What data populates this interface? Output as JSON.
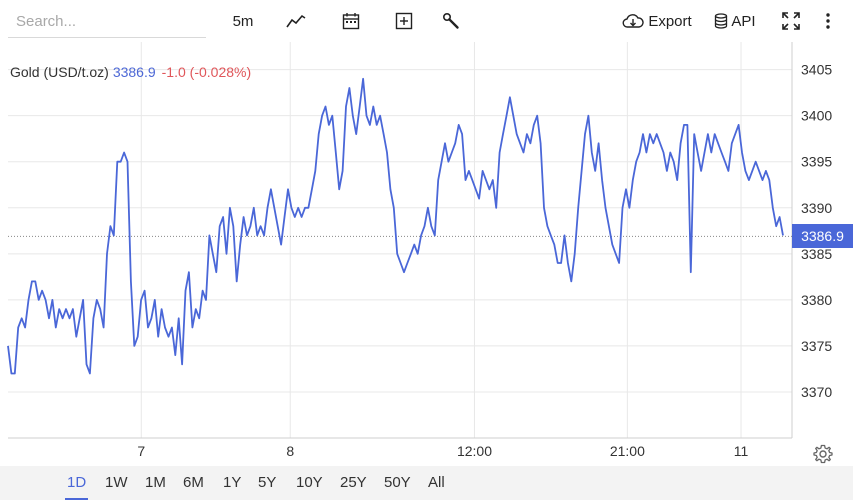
{
  "toolbar": {
    "search_placeholder": "Search...",
    "interval": "5m",
    "export_label": "Export",
    "api_label": "API",
    "icons": [
      "chart-type-icon",
      "calendar-icon",
      "add-indicator-icon",
      "wrench-icon",
      "cloud-download-icon",
      "database-icon",
      "fullscreen-icon",
      "more-vertical-icon"
    ]
  },
  "legend": {
    "name": "Gold (USD/t.oz)",
    "price": "3386.9",
    "change": "-1.0 (-0.028%)"
  },
  "last_price_label": "3386.9",
  "colors": {
    "line": "#4a67d8",
    "change": "#e0565a",
    "grid": "#e8e8e8"
  },
  "range_buttons": [
    "1D",
    "1W",
    "1M",
    "6M",
    "1Y",
    "5Y",
    "10Y",
    "25Y",
    "50Y",
    "All"
  ],
  "active_range": "1D",
  "chart_data": {
    "type": "line",
    "title": "Gold (USD/t.oz)",
    "ylim": [
      3365,
      3408
    ],
    "yticks": [
      3370,
      3375,
      3380,
      3385,
      3390,
      3395,
      3400,
      3405
    ],
    "xticks": [
      {
        "label": "7",
        "pos": 0.17
      },
      {
        "label": "8",
        "pos": 0.36
      },
      {
        "label": "12:00",
        "pos": 0.595
      },
      {
        "label": "21:00",
        "pos": 0.79
      },
      {
        "label": "11",
        "pos": 0.935
      }
    ],
    "last_value": 3386.9,
    "grid": true,
    "series": [
      {
        "values": [
          3375,
          3372,
          3372,
          3377,
          3378,
          3377,
          3380,
          3382,
          3382,
          3380,
          3381,
          3380,
          3378,
          3380,
          3377,
          3379,
          3378,
          3379,
          3378,
          3379,
          3376,
          3378,
          3380,
          3373,
          3372,
          3378,
          3380,
          3379,
          3377,
          3385,
          3388,
          3387,
          3395,
          3395,
          3396,
          3395,
          3382,
          3375,
          3376,
          3380,
          3381,
          3377,
          3378,
          3380,
          3376,
          3379,
          3377,
          3376,
          3377,
          3374,
          3378,
          3373,
          3381,
          3383,
          3377,
          3379,
          3378,
          3381,
          3380,
          3387,
          3385,
          3383,
          3388,
          3389,
          3385,
          3390,
          3388,
          3382,
          3386,
          3389,
          3387,
          3388,
          3390,
          3387,
          3388,
          3387,
          3390,
          3392,
          3390,
          3388,
          3386,
          3389,
          3392,
          3390,
          3389,
          3390,
          3389,
          3390,
          3390,
          3392,
          3394,
          3398,
          3400,
          3401,
          3399,
          3400,
          3396,
          3392,
          3394,
          3401,
          3403,
          3400,
          3398,
          3401,
          3404,
          3400,
          3399,
          3401,
          3399,
          3400,
          3398,
          3396,
          3392,
          3390,
          3385,
          3384,
          3383,
          3384,
          3385,
          3386,
          3385,
          3387,
          3388,
          3390,
          3388,
          3387,
          3393,
          3395,
          3397,
          3395,
          3396,
          3397,
          3399,
          3398,
          3393,
          3394,
          3393,
          3392,
          3391,
          3394,
          3393,
          3392,
          3393,
          3390,
          3396,
          3398,
          3400,
          3402,
          3400,
          3398,
          3397,
          3396,
          3398,
          3397,
          3399,
          3400,
          3397,
          3390,
          3388,
          3387,
          3386,
          3384,
          3384,
          3387,
          3384,
          3382,
          3385,
          3390,
          3394,
          3398,
          3400,
          3396,
          3394,
          3397,
          3393,
          3390,
          3388,
          3386,
          3385,
          3384,
          3390,
          3392,
          3390,
          3393,
          3395,
          3396,
          3398,
          3396,
          3398,
          3397,
          3398,
          3397,
          3396,
          3394,
          3396,
          3395,
          3393,
          3397,
          3399,
          3399,
          3383,
          3398,
          3396,
          3394,
          3396,
          3398,
          3396,
          3398,
          3397,
          3396,
          3395,
          3394,
          3397,
          3398,
          3399,
          3396,
          3394,
          3393,
          3394,
          3395,
          3394,
          3393,
          3394,
          3393,
          3390,
          3388,
          3389,
          3387
        ]
      }
    ]
  }
}
